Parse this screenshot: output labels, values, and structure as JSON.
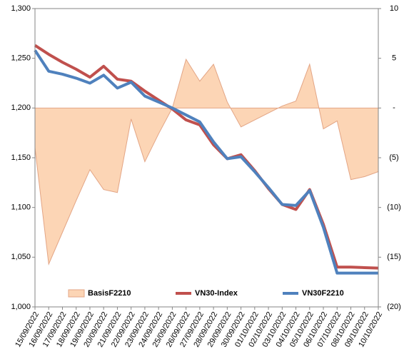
{
  "chart_data": {
    "type": "combo",
    "categories": [
      "15/09/2022",
      "16/09/2022",
      "17/09/2022",
      "18/09/2022",
      "19/09/2022",
      "20/09/2022",
      "21/09/2022",
      "22/09/2022",
      "23/09/2022",
      "24/09/2022",
      "25/09/2022",
      "26/09/2022",
      "27/09/2022",
      "28/09/2022",
      "29/09/2022",
      "30/09/2022",
      "01/10/2022",
      "02/10/2022",
      "03/10/2022",
      "04/10/2022",
      "05/10/2022",
      "06/10/2022",
      "07/10/2022",
      "08/10/2022",
      "09/10/2022",
      "10/10/2022"
    ],
    "series": [
      {
        "name": "BasisF2210",
        "type": "area",
        "axis": "y2",
        "color": "#fcd5b5",
        "edge_color": "#e3a585",
        "values": [
          -4,
          -15.7,
          -12.5,
          -9.3,
          -6.2,
          -8.2,
          -8.5,
          -1.1,
          -5.4,
          -2.6,
          0,
          4.9,
          2.7,
          4.4,
          0.6,
          -1.9,
          -1.2,
          -0.5,
          0.2,
          0.7,
          4.4,
          -2.1,
          -1.3,
          -7.2,
          -6.9,
          -6.4
        ]
      },
      {
        "name": "VN30-Index",
        "type": "line",
        "axis": "y",
        "color": "#c0504d",
        "values": [
          1263,
          1254,
          1246,
          1239,
          1231,
          1242,
          1229,
          1227,
          1217,
          1208,
          1199,
          1188,
          1183,
          1163,
          1149,
          1153,
          1137,
          1119,
          1103,
          1098,
          1118,
          1083,
          1040,
          1040,
          1039.5,
          1039
        ]
      },
      {
        "name": "VN30F2210",
        "type": "line",
        "axis": "y",
        "color": "#4f81bd",
        "values": [
          1258,
          1237,
          1234,
          1230,
          1225,
          1233,
          1220,
          1226,
          1212,
          1206,
          1200,
          1193,
          1186,
          1166,
          1149,
          1151,
          1136,
          1120,
          1103,
          1102,
          1117,
          1080,
          1034,
          1034,
          1034,
          1034
        ]
      }
    ],
    "ylim": [
      1000,
      1300
    ],
    "yticks": [
      {
        "value": 1000,
        "label": "1,000"
      },
      {
        "value": 1050,
        "label": "1,050"
      },
      {
        "value": 1100,
        "label": "1,100"
      },
      {
        "value": 1150,
        "label": "1,150"
      },
      {
        "value": 1200,
        "label": "1,200"
      },
      {
        "value": 1250,
        "label": "1,250"
      },
      {
        "value": 1300,
        "label": "1,300"
      }
    ],
    "y2lim": [
      -20,
      10
    ],
    "y2ticks": [
      {
        "value": -20,
        "label": "(20)"
      },
      {
        "value": -15,
        "label": "(15)"
      },
      {
        "value": -10,
        "label": "(10)"
      },
      {
        "value": -5,
        "label": "(5)"
      },
      {
        "value": 0,
        "label": "-"
      },
      5,
      10
    ],
    "legend": "bottom",
    "grid": false
  }
}
